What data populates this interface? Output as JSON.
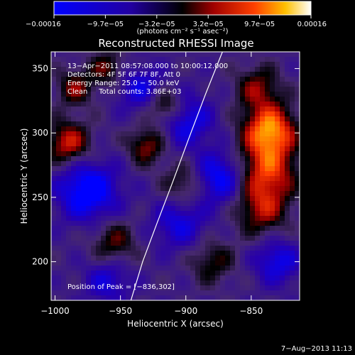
{
  "chart_data": {
    "type": "heatmap",
    "title": "Reconstructed RHESSI Image",
    "xlabel": "Heliocentric X (arcsec)",
    "ylabel": "Heliocentric Y (arcsec)",
    "xlim": [
      -1003,
      -813
    ],
    "ylim": [
      170,
      363
    ],
    "xticks": [
      -1000,
      -950,
      -900,
      -850
    ],
    "xtick_labels": [
      "−1000",
      "−950",
      "−900",
      "−850"
    ],
    "yticks": [
      200,
      250,
      300,
      350
    ],
    "ytick_labels": [
      "200",
      "250",
      "300",
      "350"
    ],
    "colorbar": {
      "min": -0.00016,
      "max": 0.00016,
      "tick_labels": [
        "−0.00016",
        "−9.7e−05",
        "−3.2e−05",
        "3.2e−05",
        "9.7e−05",
        "0.00016"
      ],
      "unit_label": "(photons cm⁻² s⁻¹ asec⁻²)"
    },
    "annotations": [
      "13−Apr−2011 08:57:08.000 to 10:00:12.000",
      "Detectors: 4F 5F 6F 7F 8F, Att 0",
      "Energy Range: 25.0 − 50.0 keV",
      "Clean     Total counts: 3.86E+03"
    ],
    "peak_text": "Position of Peak = [−836,302]",
    "peak": [
      -836,
      302
    ],
    "limb_points": [
      [
        -942,
        170
      ],
      [
        -933,
        200
      ],
      [
        -922,
        230
      ],
      [
        -910,
        262
      ],
      [
        -898,
        295
      ],
      [
        -885,
        330
      ],
      [
        -872,
        363
      ]
    ],
    "sources": [
      {
        "x": -836,
        "y": 302,
        "v": 1.0,
        "s": 14
      },
      {
        "x": -838,
        "y": 270,
        "v": 0.75,
        "s": 16
      },
      {
        "x": -842,
        "y": 240,
        "v": 0.55,
        "s": 14
      },
      {
        "x": -845,
        "y": 335,
        "v": 0.5,
        "s": 12
      },
      {
        "x": -990,
        "y": 292,
        "v": 0.7,
        "s": 12
      },
      {
        "x": -930,
        "y": 290,
        "v": 0.55,
        "s": 10
      },
      {
        "x": -915,
        "y": 320,
        "v": 0.6,
        "s": 10
      },
      {
        "x": -985,
        "y": 335,
        "v": 0.5,
        "s": 10
      },
      {
        "x": -955,
        "y": 215,
        "v": 0.45,
        "s": 12
      },
      {
        "x": -900,
        "y": 260,
        "v": 0.45,
        "s": 12
      },
      {
        "x": -880,
        "y": 200,
        "v": 0.4,
        "s": 12
      },
      {
        "x": -960,
        "y": 350,
        "v": 0.45,
        "s": 10
      },
      {
        "x": -975,
        "y": 255,
        "v": -0.8,
        "s": 16
      },
      {
        "x": -900,
        "y": 310,
        "v": -0.6,
        "s": 14
      },
      {
        "x": -875,
        "y": 265,
        "v": -0.7,
        "s": 14
      },
      {
        "x": -905,
        "y": 230,
        "v": -0.5,
        "s": 14
      },
      {
        "x": -960,
        "y": 185,
        "v": -0.45,
        "s": 12
      },
      {
        "x": -830,
        "y": 200,
        "v": -0.55,
        "s": 12
      },
      {
        "x": -935,
        "y": 335,
        "v": -0.5,
        "s": 12
      }
    ]
  },
  "footer": {
    "timestamp": "7−Aug−2013 11:13"
  }
}
